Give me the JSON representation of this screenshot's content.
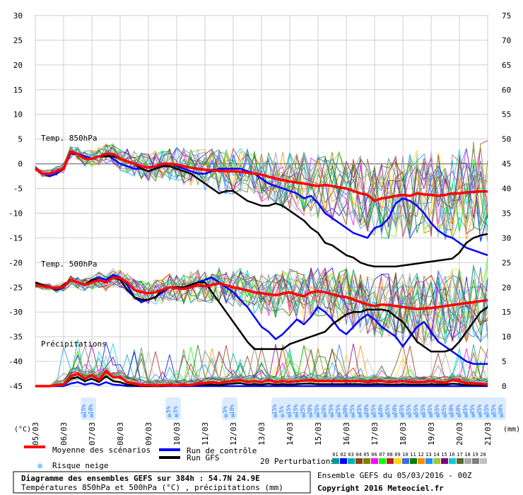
{
  "chart_data": {
    "type": "line",
    "x_tick_labels": [
      "05/03",
      "06/03",
      "07/03",
      "08/03",
      "09/03",
      "10/03",
      "11/03",
      "12/03",
      "13/03",
      "14/03",
      "15/03",
      "16/03",
      "17/03",
      "18/03",
      "19/03",
      "20/03",
      "21/03"
    ],
    "x": [
      0,
      6,
      12,
      18,
      24,
      30,
      36,
      42,
      48,
      54,
      60,
      66,
      72,
      78,
      84,
      90,
      96,
      102,
      108,
      114,
      120,
      126,
      132,
      138,
      144,
      150,
      156,
      162,
      168,
      174,
      180,
      186,
      192,
      198,
      204,
      210,
      216,
      222,
      228,
      234,
      240,
      246,
      252,
      258,
      264,
      270,
      276,
      282,
      288,
      294,
      300,
      306,
      312,
      318,
      324,
      330,
      336,
      342,
      348,
      354,
      360,
      366,
      372,
      378,
      384
    ],
    "left_axis": {
      "unit_label": "(°C)",
      "ticks": [
        30,
        25,
        20,
        15,
        10,
        5,
        0,
        -5,
        -10,
        -15,
        -20,
        -25,
        -30,
        -35,
        -40,
        -45
      ],
      "ylim": [
        -45,
        30
      ]
    },
    "right_axis": {
      "unit_label": "(mm)",
      "ticks": [
        75,
        70,
        65,
        60,
        55,
        50,
        45,
        40,
        35,
        30,
        25,
        20,
        15,
        10,
        5,
        0
      ],
      "ylim": [
        0,
        75
      ]
    },
    "panel_labels": {
      "t850": "Temp. 850hPa",
      "t500": "Temp. 500hPa",
      "precip": "Précipitations"
    },
    "series": [
      {
        "name": "Moyenne des scénarios",
        "color": "#ff0000",
        "t850": [
          -1,
          -2,
          -2,
          -1.5,
          -1,
          2.5,
          2,
          1,
          1,
          1.5,
          2,
          2,
          1,
          0.5,
          0,
          -0.5,
          -0.8,
          -0.5,
          0,
          0,
          -0.2,
          -0.5,
          -0.8,
          -1,
          -1.2,
          -1.3,
          -1.4,
          -1.5,
          -1.5,
          -1.6,
          -1.8,
          -2,
          -2.2,
          -2.6,
          -3,
          -3.3,
          -3.6,
          -3.8,
          -4,
          -4.3,
          -4.5,
          -4.3,
          -4.5,
          -4.8,
          -5,
          -5.5,
          -6,
          -6.3,
          -7.5,
          -7,
          -6.8,
          -6.5,
          -6.3,
          -6.5,
          -6,
          -6.2,
          -6.3,
          -6.5,
          -6.3,
          -6,
          -6,
          -5.8,
          -5.7,
          -5.6,
          -5.6
        ],
        "t500": [
          -24.5,
          -24.8,
          -25,
          -25.2,
          -24.8,
          -23.5,
          -24,
          -24.5,
          -24,
          -23.5,
          -24,
          -23,
          -23.2,
          -24,
          -25.5,
          -26,
          -26.2,
          -26,
          -25.5,
          -25,
          -25.2,
          -25.3,
          -25,
          -24.5,
          -24.8,
          -24.5,
          -24.2,
          -24.6,
          -25,
          -25.3,
          -25.6,
          -26,
          -26.2,
          -26.4,
          -26.6,
          -26.3,
          -26,
          -26.5,
          -26.8,
          -26,
          -25.8,
          -26,
          -26.4,
          -26.8,
          -27,
          -27.5,
          -28,
          -28.5,
          -28.8,
          -28.5,
          -28.6,
          -28.8,
          -29,
          -29.2,
          -29.4,
          -29.3,
          -29.2,
          -29,
          -28.8,
          -28.6,
          -28.4,
          -28.2,
          -28,
          -27.8,
          -27.6
        ],
        "precip": [
          0,
          0,
          0,
          0.2,
          0.3,
          2,
          2.5,
          1.5,
          2.2,
          1.2,
          3,
          1.8,
          1.8,
          0.8,
          0.5,
          0.2,
          0.2,
          0.1,
          0.2,
          0.2,
          0.1,
          0.3,
          0.2,
          0.5,
          0.6,
          0.8,
          0.6,
          0.9,
          1.0,
          1.2,
          0.8,
          1.0,
          0.8,
          1.2,
          0.8,
          1.0,
          0.8,
          1.0,
          1.1,
          1.2,
          1.0,
          1.0,
          1.0,
          1.0,
          1.0,
          1.0,
          1.0,
          0.8,
          1.0,
          1.0,
          0.8,
          0.9,
          1.0,
          0.8,
          0.8,
          0.8,
          1.0,
          0.8,
          0.7,
          1.2,
          1.0,
          0.6,
          0.5,
          0.5,
          0.3
        ]
      },
      {
        "name": "Run de contrôle",
        "color": "#0000ff",
        "t850": [
          -1,
          -2,
          -2.5,
          -2,
          -1,
          2,
          2,
          1.5,
          1,
          1.5,
          2,
          1,
          0,
          -0.5,
          -1,
          -1,
          -1.5,
          -1,
          -0.5,
          0,
          -0.5,
          -1,
          -1.5,
          -2,
          -2,
          -1.5,
          -1,
          -1,
          -1,
          -1,
          -1.5,
          -2,
          -3,
          -4,
          -4.5,
          -5,
          -5.5,
          -6,
          -7,
          -6.5,
          -8,
          -10,
          -11,
          -12,
          -13,
          -14,
          -14.5,
          -15,
          -13,
          -12.5,
          -11,
          -8,
          -7,
          -7.5,
          -8.5,
          -10,
          -12,
          -13.5,
          -14.5,
          -15,
          -16,
          -17,
          -17.5,
          -18,
          -18.5
        ],
        "t500": [
          -24,
          -24.5,
          -25,
          -25.5,
          -25,
          -23.5,
          -24,
          -24.5,
          -23.5,
          -23,
          -23.5,
          -22.5,
          -23,
          -24.5,
          -27,
          -28,
          -27.5,
          -27,
          -26,
          -25,
          -25,
          -25,
          -24.5,
          -24,
          -23.5,
          -23,
          -24,
          -25,
          -26,
          -27.5,
          -29,
          -31,
          -33,
          -34,
          -35.5,
          -34.5,
          -33,
          -31.5,
          -32.5,
          -31,
          -29,
          -30,
          -31.5,
          -33.5,
          -34.5,
          -33,
          -31.5,
          -30.5,
          -31.5,
          -33,
          -34,
          -35,
          -37,
          -35,
          -33,
          -32,
          -34,
          -36,
          -37,
          -38,
          -39,
          -40,
          -40.5,
          -40.5,
          -40.5
        ],
        "precip": [
          0,
          0,
          0,
          0,
          0,
          0.5,
          0.8,
          0.3,
          0.6,
          0.2,
          0.8,
          0.3,
          0.2,
          0,
          0,
          0,
          0,
          0,
          0,
          0,
          0,
          0,
          0,
          0,
          0,
          0,
          0,
          0,
          0,
          0,
          0,
          0,
          0,
          0,
          0,
          0,
          0,
          0,
          0,
          0,
          0,
          0,
          0,
          0,
          0,
          0,
          0,
          0,
          0,
          0,
          0,
          0,
          0,
          0,
          0,
          0,
          0,
          0,
          0,
          0,
          0,
          0,
          0,
          0,
          0
        ]
      },
      {
        "name": "Run GFS",
        "color": "#000000",
        "t850": [
          -1,
          -2,
          -2,
          -1.5,
          -1,
          2.5,
          2,
          1,
          1,
          1.5,
          1.5,
          1.5,
          1,
          0.5,
          0,
          -1,
          -1.5,
          -1,
          -0.5,
          -0.5,
          -1,
          -1.5,
          -2,
          -3,
          -4,
          -5,
          -6,
          -5.5,
          -5.5,
          -6.5,
          -7.5,
          -8,
          -8.5,
          -8.5,
          -8,
          -8.5,
          -9.5,
          -10.5,
          -11.5,
          -13,
          -14,
          -16,
          -16.5,
          -17.5,
          -18.5,
          -19,
          -20,
          -20.5,
          -20.8,
          -20.8,
          -20.8,
          -20.8,
          -20.6,
          -20.4,
          -20.2,
          -20,
          -19.8,
          -19.6,
          -19.4,
          -19.2,
          -18,
          -16,
          -15,
          -14.5,
          -14.2
        ],
        "t500": [
          -24,
          -24.5,
          -25,
          -25.5,
          -24.5,
          -23.5,
          -24,
          -24.5,
          -23.5,
          -23.5,
          -24,
          -23,
          -23.5,
          -25.5,
          -27,
          -27.5,
          -27.5,
          -27,
          -25.5,
          -25,
          -25,
          -25,
          -24.5,
          -24,
          -24,
          -26,
          -28,
          -30,
          -32,
          -34,
          -36,
          -37.5,
          -37.5,
          -37.5,
          -37.5,
          -37.5,
          -36.5,
          -36,
          -35.5,
          -35,
          -34.5,
          -34,
          -32.5,
          -31.5,
          -30.5,
          -30,
          -30,
          -29.5,
          -29.5,
          -29.5,
          -29.8,
          -31,
          -32,
          -34,
          -36,
          -37,
          -38,
          -38,
          -38,
          -37.5,
          -36,
          -34,
          -32,
          -30,
          -29
        ],
        "precip": [
          0,
          0,
          0,
          0.1,
          0.2,
          1.5,
          1.8,
          1,
          1.5,
          0.8,
          2,
          1,
          0.8,
          0.3,
          0.1,
          0,
          0,
          0,
          0,
          0.1,
          0.1,
          0.2,
          0.1,
          0.3,
          0.3,
          0.3,
          0.2,
          0.4,
          0.5,
          0.6,
          0.3,
          0.4,
          0.3,
          0.5,
          0.3,
          0.4,
          0.3,
          0.4,
          0.5,
          0.5,
          0.4,
          0.4,
          0.4,
          0.4,
          0.4,
          0.4,
          0.4,
          0.3,
          0.4,
          0.4,
          0.3,
          0.3,
          0.4,
          0.3,
          0.3,
          0.3,
          0.4,
          0.3,
          0.3,
          0.5,
          0.4,
          0.2,
          0.2,
          0.2,
          0.1
        ]
      }
    ],
    "snow_risk": [
      {
        "x": 42,
        "labels": [
          "15%",
          "10%"
        ]
      },
      {
        "x": 114,
        "labels": [
          "5%",
          "5%"
        ]
      },
      {
        "x": 162,
        "labels": [
          "5%",
          "10%"
        ]
      },
      {
        "x": 204,
        "labels": [
          "15%",
          "5%",
          "15%",
          "15%",
          "25%",
          "20%",
          "25%",
          "20%",
          "25%",
          "25%",
          "30%",
          "25%",
          "45%",
          "50%",
          "55%",
          "50%",
          "55%",
          "50%",
          "65%",
          "55%",
          "55%",
          "55%",
          "45%",
          "55%",
          "55%",
          "50%",
          "50%",
          "45%",
          "45%",
          "45%",
          "55%",
          "55%",
          "30%"
        ]
      }
    ],
    "grid": true
  },
  "legend": {
    "mean_label": "Moyenne des scénarios",
    "control_label": "Run de contrôle",
    "gfs_label": "Run GFS",
    "snow_label": "Risque neige",
    "perturb_label": "20 Perturbations",
    "perturb_numbers": [
      "01",
      "02",
      "03",
      "04",
      "05",
      "06",
      "07",
      "08",
      "09",
      "10",
      "11",
      "12",
      "13",
      "14",
      "15",
      "16",
      "17",
      "18",
      "19",
      "20"
    ],
    "perturb_colors": [
      "#009999",
      "#0000ff",
      "#00b2b2",
      "#8b4513",
      "#808000",
      "#ff00ff",
      "#00ff00",
      "#b22222",
      "#ffd700",
      "#4169e1",
      "#008000",
      "#ff8c00",
      "#1e90ff",
      "#9acd32",
      "#800080",
      "#00ced1",
      "#556b2f",
      "#a9a9a9",
      "#808080",
      "#c0c0c0"
    ]
  },
  "caption": {
    "title": "Diagramme des ensembles GEFS sur 384h : 54.7N 24.9E",
    "subtitle": "Températures 850hPa et 500hPa (°C) , précipitations (mm)",
    "run_info": "Ensemble GEFS du 05/03/2016 - 00Z",
    "copyright": "Copyright 2016 Meteociel.fr"
  }
}
